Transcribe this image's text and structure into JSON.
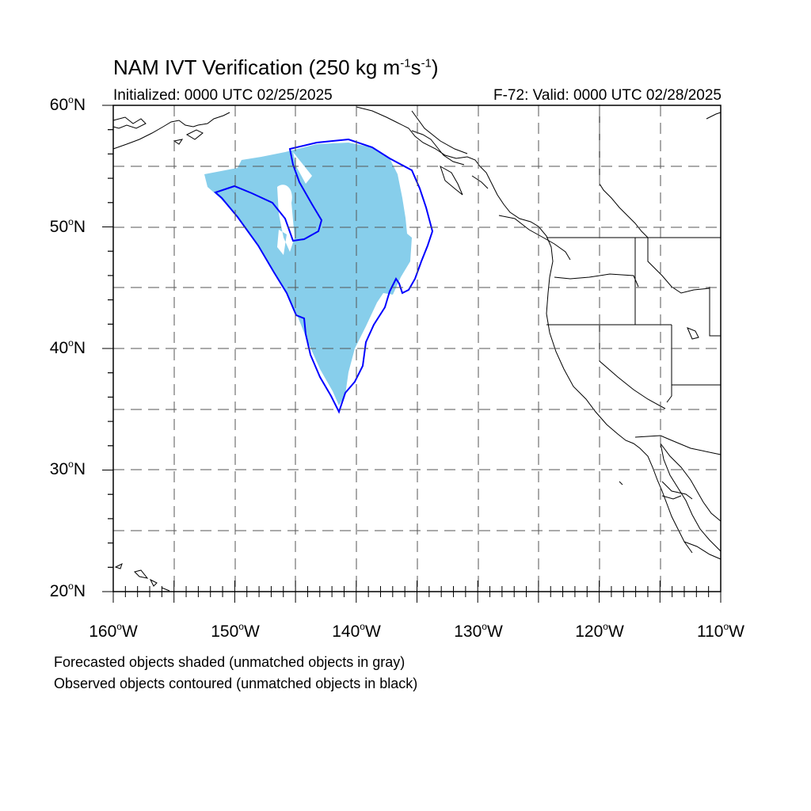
{
  "title": {
    "main": "NAM IVT Verification (250 kg m",
    "sup1": "-1",
    "mid": "s",
    "sup2": "-1",
    "end": ")"
  },
  "subtitle_left": "Initialized: 0000 UTC 02/25/2025",
  "subtitle_right": "F-72: Valid: 0000 UTC 02/28/2025",
  "lat_labels": [
    {
      "deg": "60",
      "dir": "N"
    },
    {
      "deg": "50",
      "dir": "N"
    },
    {
      "deg": "40",
      "dir": "N"
    },
    {
      "deg": "30",
      "dir": "N"
    },
    {
      "deg": "20",
      "dir": "N"
    }
  ],
  "lon_labels": [
    {
      "deg": "160",
      "dir": "W"
    },
    {
      "deg": "150",
      "dir": "W"
    },
    {
      "deg": "140",
      "dir": "W"
    },
    {
      "deg": "130",
      "dir": "W"
    },
    {
      "deg": "120",
      "dir": "W"
    },
    {
      "deg": "110",
      "dir": "W"
    }
  ],
  "notes": [
    "Forecasted objects shaded (unmatched objects in gray)",
    "Observed objects contoured (unmatched objects in black)"
  ],
  "colors": {
    "forecast_fill": "#87ceeb",
    "observed_contour": "#0000ff",
    "land_outline": "#000000",
    "grid": "#555555"
  }
}
